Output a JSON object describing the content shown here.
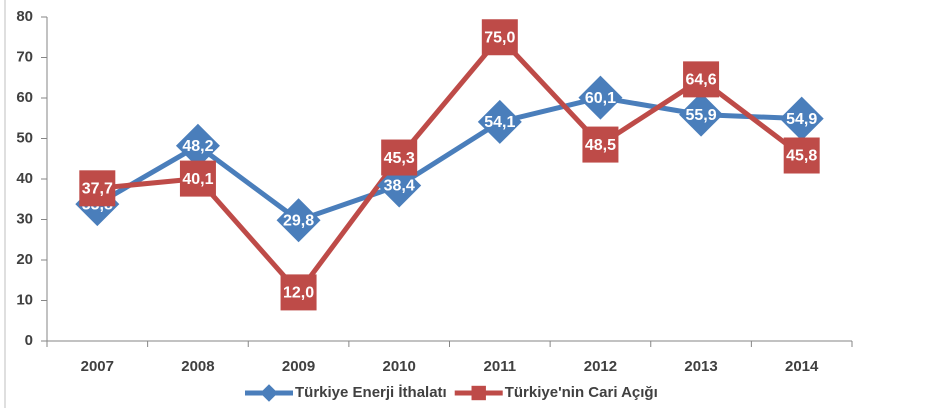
{
  "chart_data": {
    "type": "line",
    "categories": [
      "2007",
      "2008",
      "2009",
      "2010",
      "2011",
      "2012",
      "2013",
      "2014"
    ],
    "series": [
      {
        "name": "Türkiye Enerji İthalatı",
        "color": "#4a7ebb",
        "marker": "diamond",
        "values": [
          33.8,
          48.2,
          29.8,
          38.4,
          54.1,
          60.1,
          55.9,
          54.9
        ],
        "value_labels": [
          "33,8",
          "48,2",
          "29,8",
          "38,4",
          "54,1",
          "60,1",
          "55,9",
          "54,9"
        ]
      },
      {
        "name": "Türkiye'nin Cari Açığı",
        "color": "#be4b48",
        "marker": "square",
        "values": [
          37.7,
          40.1,
          12.0,
          45.3,
          75.0,
          48.5,
          64.6,
          45.8
        ],
        "value_labels": [
          "37,7",
          "40,1",
          "12,0",
          "45,3",
          "75,0",
          "48,5",
          "64,6",
          "45,8"
        ]
      }
    ],
    "ylim": [
      0,
      80
    ],
    "yticks": [
      0,
      10,
      20,
      30,
      40,
      50,
      60,
      70,
      80
    ],
    "legend": "bottom"
  }
}
